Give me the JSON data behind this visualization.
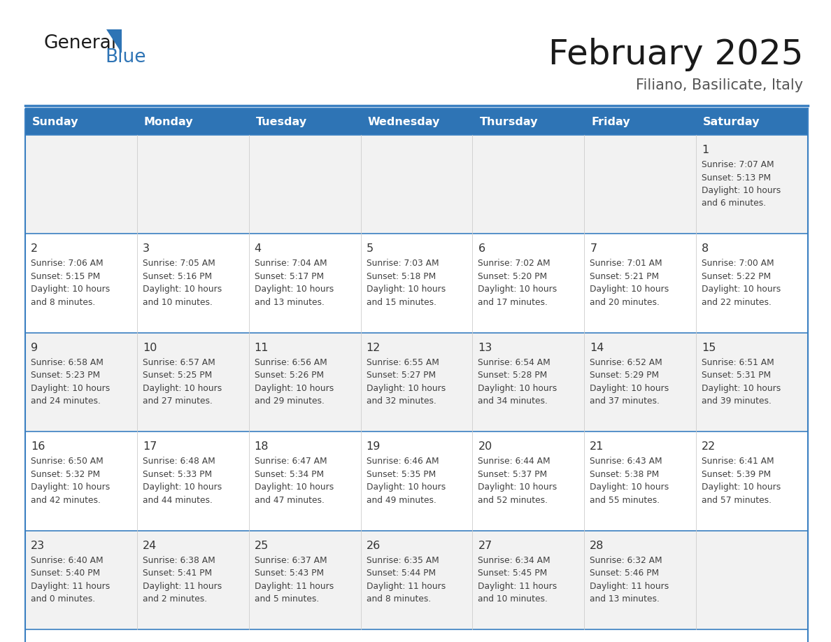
{
  "title": "February 2025",
  "subtitle": "Filiano, Basilicate, Italy",
  "days_of_week": [
    "Sunday",
    "Monday",
    "Tuesday",
    "Wednesday",
    "Thursday",
    "Friday",
    "Saturday"
  ],
  "header_bg": "#2E74B5",
  "header_text": "#FFFFFF",
  "row_bg_odd": "#F2F2F2",
  "row_bg_even": "#FFFFFF",
  "border_color": "#2E74B5",
  "text_color": "#404040",
  "separator_color": "#3A7FC1",
  "calendar_data": [
    [
      null,
      null,
      null,
      null,
      null,
      null,
      {
        "day": 1,
        "sunrise": "7:07 AM",
        "sunset": "5:13 PM",
        "daylight_h": "10 hours",
        "daylight_m": "and 6 minutes."
      }
    ],
    [
      {
        "day": 2,
        "sunrise": "7:06 AM",
        "sunset": "5:15 PM",
        "daylight_h": "10 hours",
        "daylight_m": "and 8 minutes."
      },
      {
        "day": 3,
        "sunrise": "7:05 AM",
        "sunset": "5:16 PM",
        "daylight_h": "10 hours",
        "daylight_m": "and 10 minutes."
      },
      {
        "day": 4,
        "sunrise": "7:04 AM",
        "sunset": "5:17 PM",
        "daylight_h": "10 hours",
        "daylight_m": "and 13 minutes."
      },
      {
        "day": 5,
        "sunrise": "7:03 AM",
        "sunset": "5:18 PM",
        "daylight_h": "10 hours",
        "daylight_m": "and 15 minutes."
      },
      {
        "day": 6,
        "sunrise": "7:02 AM",
        "sunset": "5:20 PM",
        "daylight_h": "10 hours",
        "daylight_m": "and 17 minutes."
      },
      {
        "day": 7,
        "sunrise": "7:01 AM",
        "sunset": "5:21 PM",
        "daylight_h": "10 hours",
        "daylight_m": "and 20 minutes."
      },
      {
        "day": 8,
        "sunrise": "7:00 AM",
        "sunset": "5:22 PM",
        "daylight_h": "10 hours",
        "daylight_m": "and 22 minutes."
      }
    ],
    [
      {
        "day": 9,
        "sunrise": "6:58 AM",
        "sunset": "5:23 PM",
        "daylight_h": "10 hours",
        "daylight_m": "and 24 minutes."
      },
      {
        "day": 10,
        "sunrise": "6:57 AM",
        "sunset": "5:25 PM",
        "daylight_h": "10 hours",
        "daylight_m": "and 27 minutes."
      },
      {
        "day": 11,
        "sunrise": "6:56 AM",
        "sunset": "5:26 PM",
        "daylight_h": "10 hours",
        "daylight_m": "and 29 minutes."
      },
      {
        "day": 12,
        "sunrise": "6:55 AM",
        "sunset": "5:27 PM",
        "daylight_h": "10 hours",
        "daylight_m": "and 32 minutes."
      },
      {
        "day": 13,
        "sunrise": "6:54 AM",
        "sunset": "5:28 PM",
        "daylight_h": "10 hours",
        "daylight_m": "and 34 minutes."
      },
      {
        "day": 14,
        "sunrise": "6:52 AM",
        "sunset": "5:29 PM",
        "daylight_h": "10 hours",
        "daylight_m": "and 37 minutes."
      },
      {
        "day": 15,
        "sunrise": "6:51 AM",
        "sunset": "5:31 PM",
        "daylight_h": "10 hours",
        "daylight_m": "and 39 minutes."
      }
    ],
    [
      {
        "day": 16,
        "sunrise": "6:50 AM",
        "sunset": "5:32 PM",
        "daylight_h": "10 hours",
        "daylight_m": "and 42 minutes."
      },
      {
        "day": 17,
        "sunrise": "6:48 AM",
        "sunset": "5:33 PM",
        "daylight_h": "10 hours",
        "daylight_m": "and 44 minutes."
      },
      {
        "day": 18,
        "sunrise": "6:47 AM",
        "sunset": "5:34 PM",
        "daylight_h": "10 hours",
        "daylight_m": "and 47 minutes."
      },
      {
        "day": 19,
        "sunrise": "6:46 AM",
        "sunset": "5:35 PM",
        "daylight_h": "10 hours",
        "daylight_m": "and 49 minutes."
      },
      {
        "day": 20,
        "sunrise": "6:44 AM",
        "sunset": "5:37 PM",
        "daylight_h": "10 hours",
        "daylight_m": "and 52 minutes."
      },
      {
        "day": 21,
        "sunrise": "6:43 AM",
        "sunset": "5:38 PM",
        "daylight_h": "10 hours",
        "daylight_m": "and 55 minutes."
      },
      {
        "day": 22,
        "sunrise": "6:41 AM",
        "sunset": "5:39 PM",
        "daylight_h": "10 hours",
        "daylight_m": "and 57 minutes."
      }
    ],
    [
      {
        "day": 23,
        "sunrise": "6:40 AM",
        "sunset": "5:40 PM",
        "daylight_h": "11 hours",
        "daylight_m": "and 0 minutes."
      },
      {
        "day": 24,
        "sunrise": "6:38 AM",
        "sunset": "5:41 PM",
        "daylight_h": "11 hours",
        "daylight_m": "and 2 minutes."
      },
      {
        "day": 25,
        "sunrise": "6:37 AM",
        "sunset": "5:43 PM",
        "daylight_h": "11 hours",
        "daylight_m": "and 5 minutes."
      },
      {
        "day": 26,
        "sunrise": "6:35 AM",
        "sunset": "5:44 PM",
        "daylight_h": "11 hours",
        "daylight_m": "and 8 minutes."
      },
      {
        "day": 27,
        "sunrise": "6:34 AM",
        "sunset": "5:45 PM",
        "daylight_h": "11 hours",
        "daylight_m": "and 10 minutes."
      },
      {
        "day": 28,
        "sunrise": "6:32 AM",
        "sunset": "5:46 PM",
        "daylight_h": "11 hours",
        "daylight_m": "and 13 minutes."
      },
      null
    ]
  ]
}
